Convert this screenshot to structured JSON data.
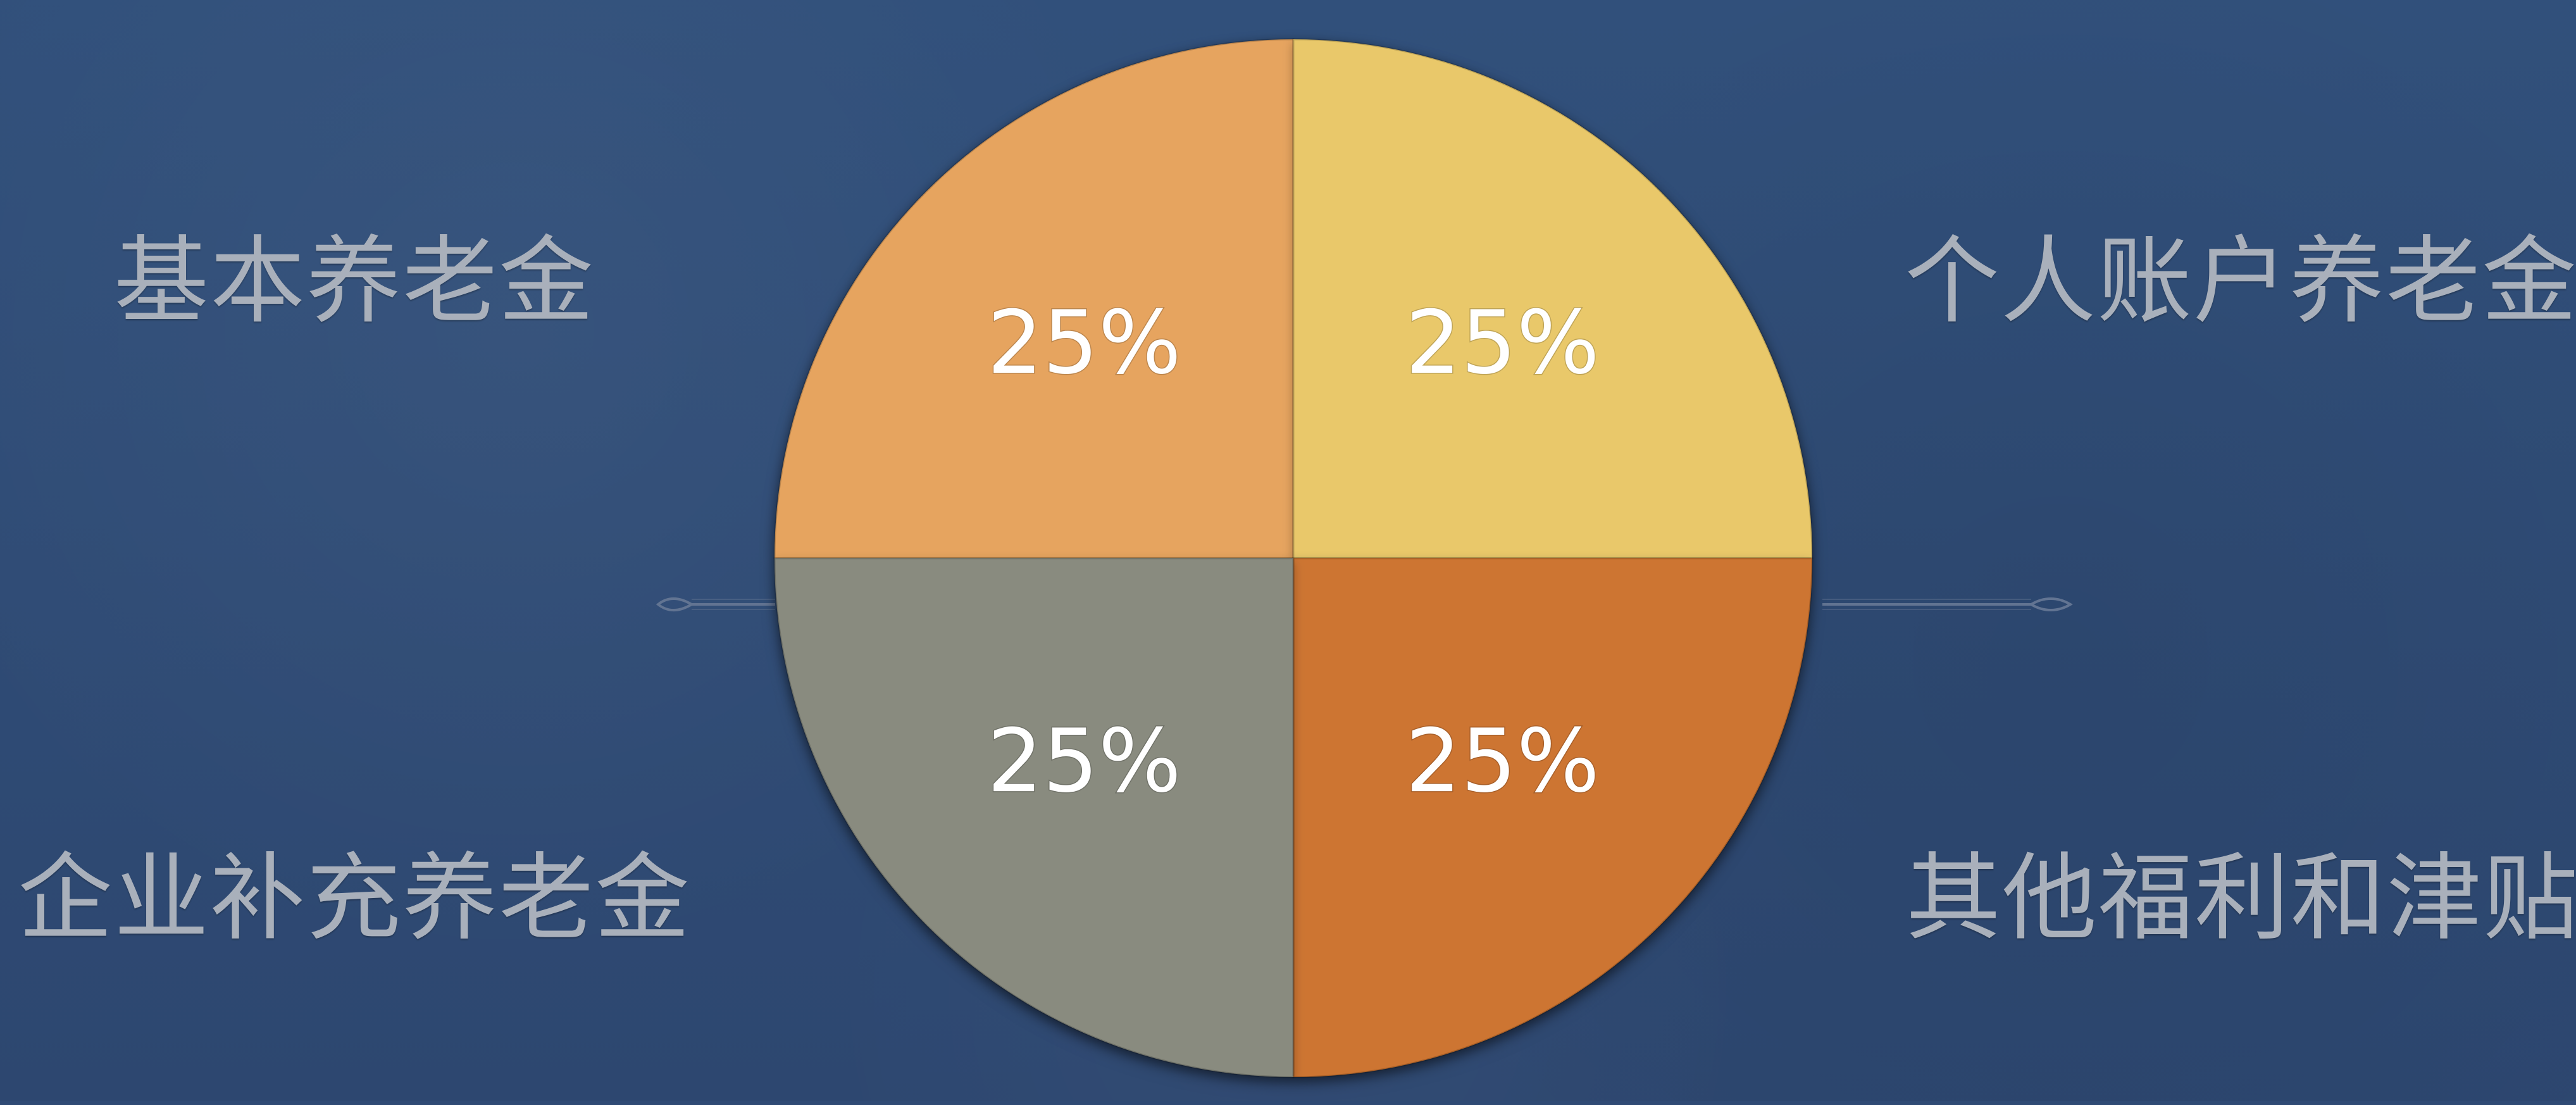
{
  "chart_data": {
    "type": "pie",
    "slices": [
      {
        "label": "基本养老金",
        "value": 25,
        "display": "25%",
        "color": "#e6a45f"
      },
      {
        "label": "个人账户养老金",
        "value": 25,
        "display": "25%",
        "color": "#e9c86a"
      },
      {
        "label": "其他福利和津贴",
        "value": 25,
        "display": "25%",
        "color": "#cd7430"
      },
      {
        "label": "企业补充养老金",
        "value": 25,
        "display": "25%",
        "color": "#898b7f"
      }
    ]
  }
}
